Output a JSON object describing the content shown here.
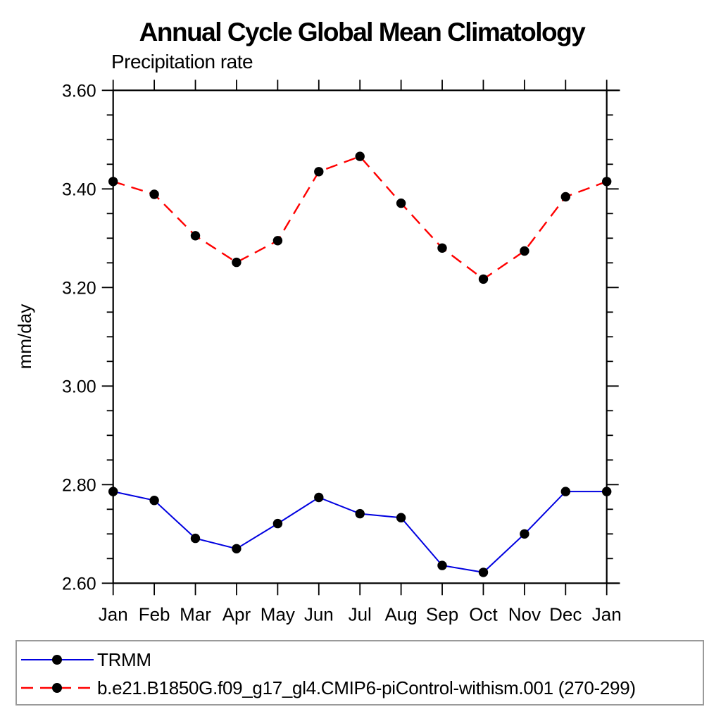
{
  "page": {
    "background": "#ffffff"
  },
  "chart_data": {
    "type": "line",
    "title": "Annual Cycle Global Mean Climatology",
    "subtitle": "Precipitation rate",
    "ylabel": "mm/day",
    "xlabel": "",
    "categories": [
      "Jan",
      "Feb",
      "Mar",
      "Apr",
      "May",
      "Jun",
      "Jul",
      "Aug",
      "Sep",
      "Oct",
      "Nov",
      "Dec",
      "Jan"
    ],
    "ylim": [
      2.6,
      3.6
    ],
    "ytick_major_step": 0.2,
    "ytick_minor_step": 0.05,
    "ytick_labels": [
      "3.60",
      "3.40",
      "3.20",
      "3.00",
      "2.80",
      "2.60"
    ],
    "grid": false,
    "legend_position": "bottom-left-box",
    "axis_color": "#000000",
    "series": [
      {
        "name": "TRMM",
        "color": "#0000e0",
        "line_style": "solid",
        "marker": "filled-circle",
        "marker_color": "#000000",
        "values": [
          2.786,
          2.768,
          2.691,
          2.67,
          2.721,
          2.774,
          2.741,
          2.733,
          2.636,
          2.622,
          2.7,
          2.786,
          2.786
        ]
      },
      {
        "name": "b.e21.B1850G.f09_g17_gl4.CMIP6-piControl-withism.001 (270-299)",
        "color": "#ff0000",
        "line_style": "dashed",
        "marker": "filled-circle",
        "marker_color": "#000000",
        "values": [
          3.415,
          3.389,
          3.305,
          3.251,
          3.295,
          3.435,
          3.466,
          3.371,
          3.28,
          3.217,
          3.274,
          3.384,
          3.415
        ]
      }
    ]
  }
}
